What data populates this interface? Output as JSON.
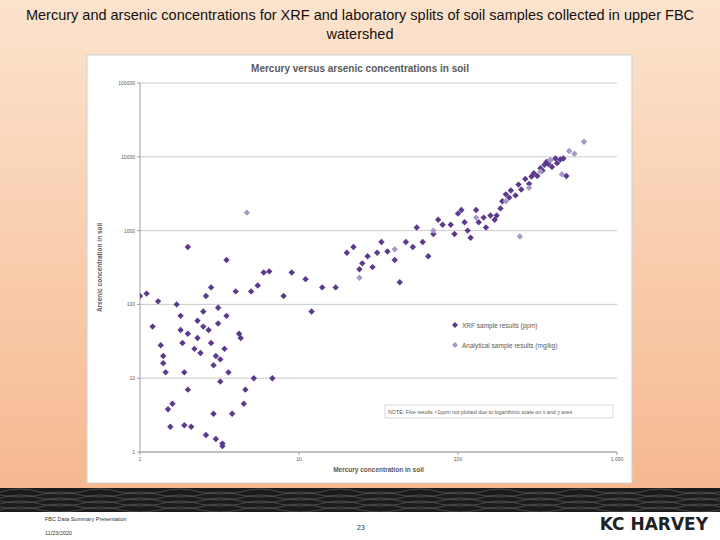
{
  "page": {
    "title": [
      "Mercury and arsenic concentrations for XRF and laboratory splits of soil samples collected in upper FBC",
      "watershed"
    ],
    "footer_left": "FBC Data Summary Presentation",
    "date": "11/23/2020",
    "page_number": "23",
    "logo": "KC HARVEY"
  },
  "chart_data": {
    "type": "scatter",
    "title": "Mercury versus arsenic concentrations in soil",
    "x_label": "Mercury concentration in soil",
    "y_label": "Arsenic concentration in soil",
    "log": true,
    "grid": true,
    "legend": "right",
    "xlim": [
      1,
      1000
    ],
    "ylim": [
      1,
      100000
    ],
    "xticks": [
      1,
      10,
      100,
      {
        "value": 1000,
        "label": "1,000"
      }
    ],
    "yticks": [
      1,
      10,
      100,
      1000,
      10000,
      100000
    ],
    "annotations": [
      "NOTE: Five results <1ppm not plotted due to logarithmic scale on x and y axes"
    ],
    "series": [
      {
        "name": "XRF sample results (ppm)",
        "color": "#5b3a8c",
        "marker": "diamond",
        "x": [
          1.0,
          1.1,
          1.2,
          1.3,
          1.35,
          1.4,
          1.4,
          1.45,
          1.5,
          1.55,
          1.6,
          1.7,
          1.8,
          1.8,
          1.85,
          1.9,
          1.9,
          2.0,
          2.0,
          2.0,
          2.1,
          2.2,
          2.3,
          2.3,
          2.4,
          2.5,
          2.5,
          2.6,
          2.6,
          2.7,
          2.8,
          2.8,
          2.9,
          2.9,
          3.0,
          3.0,
          3.1,
          3.1,
          3.2,
          3.2,
          3.3,
          3.3,
          3.4,
          3.5,
          3.5,
          3.6,
          3.8,
          4.0,
          4.2,
          4.3,
          4.5,
          4.6,
          5.0,
          5.2,
          5.5,
          6.0,
          6.5,
          6.8,
          8,
          9,
          11,
          12,
          14,
          17,
          20,
          22,
          24,
          25,
          27,
          29,
          31,
          33,
          36,
          40,
          43,
          47,
          52,
          55,
          60,
          65,
          70,
          75,
          80,
          90,
          95,
          100,
          105,
          110,
          115,
          120,
          130,
          135,
          145,
          150,
          160,
          170,
          175,
          185,
          190,
          200,
          210,
          215,
          230,
          240,
          250,
          265,
          280,
          290,
          300,
          315,
          330,
          340,
          350,
          360,
          370,
          380,
          390,
          410,
          420,
          440,
          460,
          480
        ],
        "values": [
          130,
          140,
          50,
          110,
          28,
          20,
          16,
          12,
          3.8,
          2.2,
          4.5,
          100,
          70,
          45,
          30,
          12,
          2.3,
          7,
          600,
          40,
          2.2,
          25,
          60,
          35,
          22,
          80,
          50,
          1.7,
          130,
          45,
          30,
          170,
          3.3,
          15,
          20,
          1.5,
          90,
          55,
          18,
          9,
          1.3,
          1.2,
          25,
          400,
          70,
          12,
          3.3,
          150,
          40,
          35,
          4.5,
          7,
          150,
          10,
          180,
          270,
          280,
          10,
          130,
          270,
          220,
          80,
          170,
          170,
          500,
          600,
          300,
          360,
          450,
          320,
          500,
          700,
          520,
          400,
          200,
          700,
          600,
          1100,
          700,
          450,
          900,
          1400,
          1200,
          1200,
          900,
          1700,
          1900,
          1300,
          1000,
          800,
          1900,
          1300,
          1500,
          1100,
          1600,
          1400,
          1600,
          2000,
          2500,
          3100,
          2800,
          3500,
          3000,
          4200,
          3600,
          5000,
          4300,
          5400,
          6000,
          5500,
          7000,
          6500,
          7800,
          8500,
          8000,
          9000,
          7300,
          9500,
          8200,
          9200,
          9500,
          5500
        ]
      },
      {
        "name": "Analytical sample results (mg/kg)",
        "color": "#a899c8",
        "marker": "diamond",
        "x": [
          4.7,
          24,
          40,
          70,
          130,
          200,
          280,
          330,
          380,
          450,
          500,
          540,
          620,
          245
        ],
        "values": [
          1750,
          230,
          560,
          1000,
          1500,
          2500,
          3800,
          6300,
          9000,
          5800,
          12000,
          11000,
          16000,
          830
        ]
      }
    ]
  }
}
